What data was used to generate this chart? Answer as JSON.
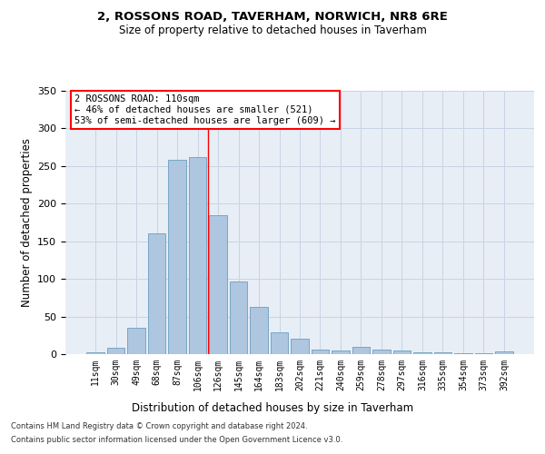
{
  "title1": "2, ROSSONS ROAD, TAVERHAM, NORWICH, NR8 6RE",
  "title2": "Size of property relative to detached houses in Taverham",
  "xlabel": "Distribution of detached houses by size in Taverham",
  "ylabel": "Number of detached properties",
  "bar_labels": [
    "11sqm",
    "30sqm",
    "49sqm",
    "68sqm",
    "87sqm",
    "106sqm",
    "126sqm",
    "145sqm",
    "164sqm",
    "183sqm",
    "202sqm",
    "221sqm",
    "240sqm",
    "259sqm",
    "278sqm",
    "297sqm",
    "316sqm",
    "335sqm",
    "354sqm",
    "373sqm",
    "392sqm"
  ],
  "bar_values": [
    2,
    8,
    35,
    160,
    258,
    262,
    185,
    96,
    63,
    29,
    20,
    6,
    5,
    10,
    6,
    5,
    3,
    3,
    1,
    1,
    4
  ],
  "bar_color": "#aec6df",
  "bar_edge_color": "#6a9fc0",
  "grid_color": "#c8d4e4",
  "bg_color": "#e8eef6",
  "vline_x": 5.5,
  "vline_color": "red",
  "annotation_text": "2 ROSSONS ROAD: 110sqm\n← 46% of detached houses are smaller (521)\n53% of semi-detached houses are larger (609) →",
  "annotation_box_color": "white",
  "annotation_edge_color": "red",
  "ylim": [
    0,
    350
  ],
  "yticks": [
    0,
    50,
    100,
    150,
    200,
    250,
    300,
    350
  ],
  "footnote1": "Contains HM Land Registry data © Crown copyright and database right 2024.",
  "footnote2": "Contains public sector information licensed under the Open Government Licence v3.0."
}
